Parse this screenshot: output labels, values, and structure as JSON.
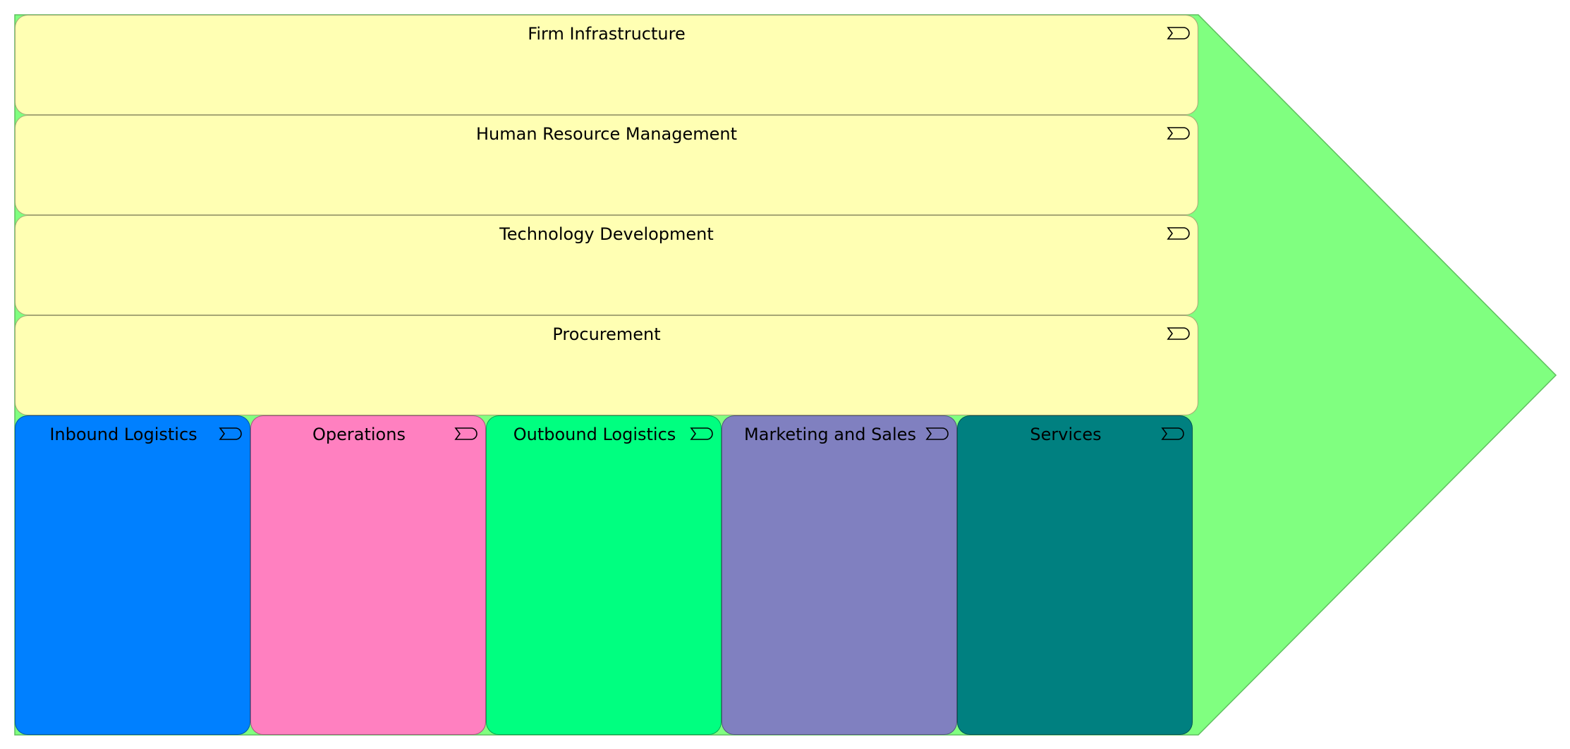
{
  "diagram": {
    "arrow_color": "#80ff80",
    "support_color": "#ffffb3",
    "support_activities": [
      {
        "label": "Firm Infrastructure",
        "icon": "business-function-icon"
      },
      {
        "label": "Human Resource Management",
        "icon": "business-function-icon"
      },
      {
        "label": "Technology Development",
        "icon": "business-function-icon"
      },
      {
        "label": "Procurement",
        "icon": "business-function-icon"
      }
    ],
    "primary_activities": [
      {
        "label": "Inbound Logistics",
        "color": "#0080ff",
        "icon": "business-function-icon"
      },
      {
        "label": "Operations",
        "color": "#ff80c0",
        "icon": "business-function-icon"
      },
      {
        "label": "Outbound Logistics",
        "color": "#00ff80",
        "icon": "business-function-icon"
      },
      {
        "label": "Marketing and Sales",
        "color": "#8080c0",
        "icon": "business-function-icon"
      },
      {
        "label": "Services",
        "color": "#008080",
        "icon": "business-function-icon"
      }
    ]
  }
}
